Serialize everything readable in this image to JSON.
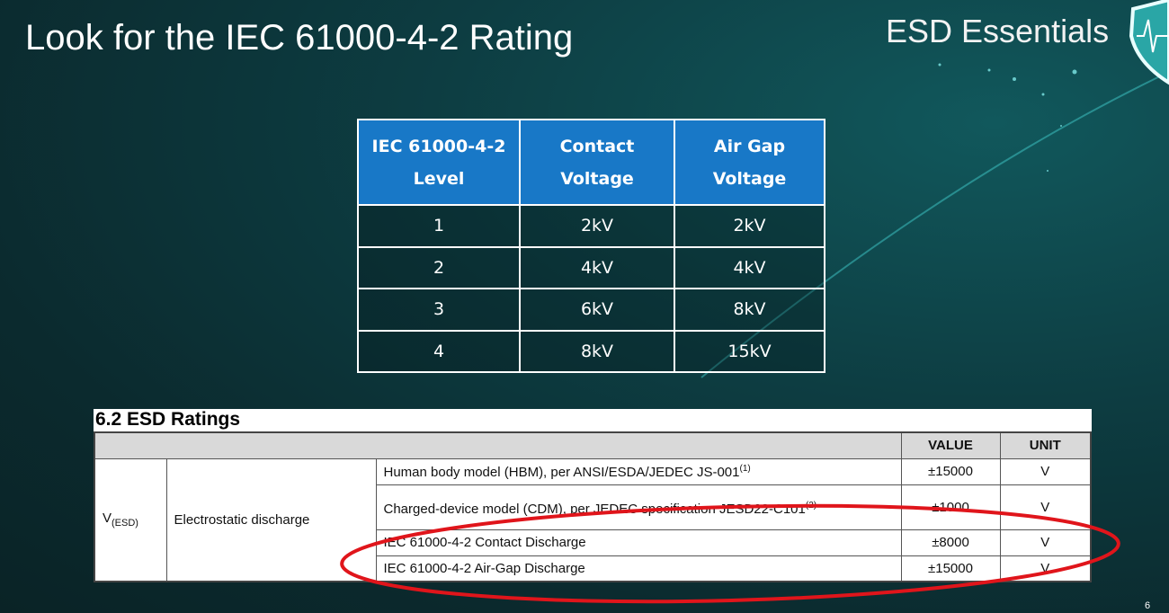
{
  "slide": {
    "title": "Look for the IEC 61000-4-2 Rating",
    "brand": "ESD Essentials",
    "page_number": "6",
    "logo_icon": "shield-heartbeat-icon",
    "accent_color": "#1878c7",
    "highlight_color": "#e0151b"
  },
  "iec_table": {
    "headers": [
      "IEC 61000-4-2 Level",
      "Contact Voltage",
      "Air Gap Voltage"
    ],
    "rows": [
      [
        "1",
        "2kV",
        "2kV"
      ],
      [
        "2",
        "4kV",
        "4kV"
      ],
      [
        "3",
        "6kV",
        "8kV"
      ],
      [
        "4",
        "8kV",
        "15kV"
      ]
    ]
  },
  "esd_ratings": {
    "title": "6.2   ESD Ratings",
    "headers": [
      "",
      "VALUE",
      "UNIT"
    ],
    "symbol": "V",
    "symbol_sub": "(ESD)",
    "parameter": "Electrostatic discharge",
    "rows": [
      {
        "condition": "Human body model (HBM), per ANSI/ESDA/JEDEC JS-001",
        "note": "(1)",
        "value": "±15000",
        "unit": "V"
      },
      {
        "condition": "Charged-device model (CDM), per JEDEC specification JESD22-C101",
        "note": "(2)",
        "value": "±1000",
        "unit": "V"
      },
      {
        "condition": "IEC 61000-4-2 Contact Discharge",
        "value": "±8000",
        "unit": "V"
      },
      {
        "condition": "IEC 61000-4-2 Air-Gap Discharge",
        "value": "±15000",
        "unit": "V"
      }
    ]
  }
}
